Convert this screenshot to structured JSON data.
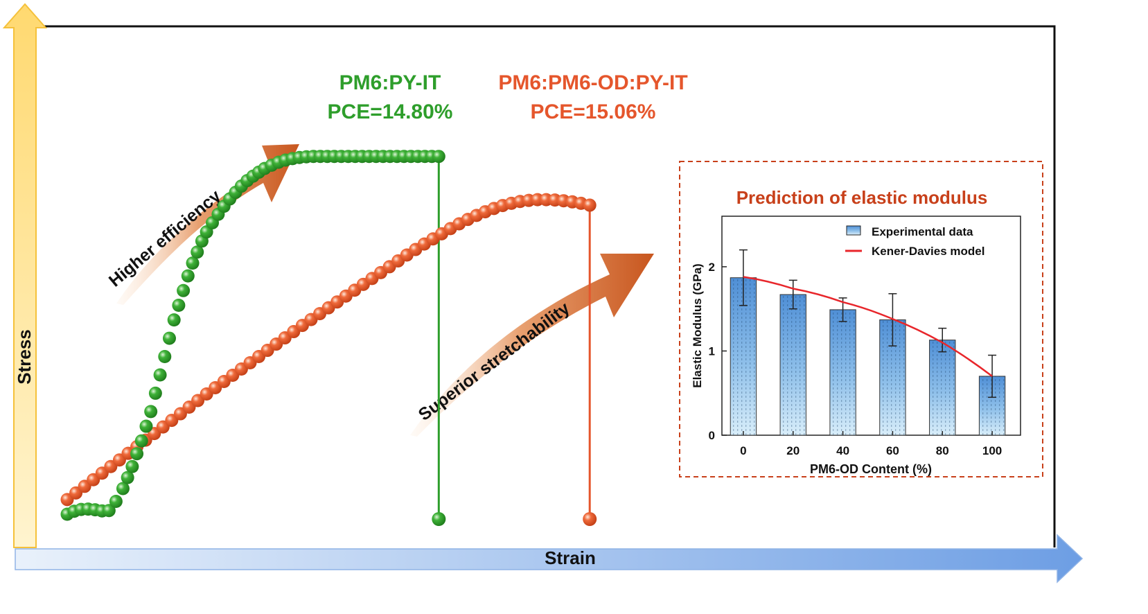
{
  "chart_data": {
    "type": "scatter",
    "xlabel": "Strain",
    "ylabel": "Stress",
    "series": [
      {
        "name": "PM6:PY-IT",
        "annotation": "PCE=14.80%",
        "color": "#2e9e2b",
        "x": [
          0.0,
          0.012,
          0.024,
          0.036,
          0.048,
          0.06,
          0.072,
          0.084,
          0.096,
          0.104,
          0.112,
          0.12,
          0.128,
          0.136,
          0.144,
          0.152,
          0.16,
          0.168,
          0.176,
          0.184,
          0.192,
          0.2,
          0.208,
          0.216,
          0.224,
          0.232,
          0.24,
          0.25,
          0.26,
          0.27,
          0.28,
          0.29,
          0.3,
          0.31,
          0.32,
          0.33,
          0.34,
          0.352,
          0.364,
          0.376,
          0.388,
          0.4,
          0.412,
          0.424,
          0.436,
          0.448,
          0.46,
          0.472,
          0.484,
          0.496,
          0.508,
          0.52,
          0.532,
          0.544,
          0.556,
          0.568,
          0.58,
          0.592,
          0.604,
          0.616,
          0.628,
          0.64
        ],
        "y": [
          0.0,
          0.008,
          0.013,
          0.014,
          0.012,
          0.009,
          0.01,
          0.035,
          0.07,
          0.1,
          0.13,
          0.165,
          0.2,
          0.24,
          0.28,
          0.33,
          0.38,
          0.43,
          0.48,
          0.53,
          0.57,
          0.61,
          0.65,
          0.685,
          0.715,
          0.745,
          0.77,
          0.795,
          0.818,
          0.84,
          0.86,
          0.878,
          0.895,
          0.91,
          0.922,
          0.933,
          0.943,
          0.952,
          0.96,
          0.966,
          0.97,
          0.973,
          0.975,
          0.976,
          0.976,
          0.976,
          0.976,
          0.976,
          0.976,
          0.976,
          0.976,
          0.976,
          0.976,
          0.976,
          0.976,
          0.976,
          0.976,
          0.976,
          0.976,
          0.976,
          0.976,
          0.976
        ],
        "break_strain": 0.64
      },
      {
        "name": "PM6:PM6-OD:PY-IT",
        "annotation": "PCE=15.06%",
        "color": "#e5562c",
        "x": [
          0.0,
          0.015,
          0.03,
          0.045,
          0.06,
          0.075,
          0.09,
          0.105,
          0.12,
          0.135,
          0.15,
          0.165,
          0.18,
          0.195,
          0.21,
          0.225,
          0.24,
          0.255,
          0.27,
          0.285,
          0.3,
          0.315,
          0.33,
          0.345,
          0.36,
          0.375,
          0.39,
          0.405,
          0.42,
          0.435,
          0.45,
          0.465,
          0.48,
          0.495,
          0.51,
          0.525,
          0.54,
          0.555,
          0.57,
          0.585,
          0.6,
          0.615,
          0.63,
          0.645,
          0.66,
          0.675,
          0.69,
          0.705,
          0.72,
          0.735,
          0.75,
          0.765,
          0.78,
          0.795,
          0.81,
          0.825,
          0.84,
          0.855,
          0.87,
          0.885,
          0.9
        ],
        "y": [
          0.04,
          0.058,
          0.076,
          0.094,
          0.112,
          0.13,
          0.148,
          0.166,
          0.184,
          0.202,
          0.22,
          0.238,
          0.256,
          0.274,
          0.292,
          0.31,
          0.328,
          0.345,
          0.362,
          0.379,
          0.396,
          0.413,
          0.43,
          0.447,
          0.464,
          0.481,
          0.498,
          0.515,
          0.531,
          0.547,
          0.563,
          0.579,
          0.595,
          0.611,
          0.627,
          0.643,
          0.659,
          0.675,
          0.691,
          0.707,
          0.722,
          0.737,
          0.751,
          0.765,
          0.779,
          0.792,
          0.804,
          0.815,
          0.825,
          0.834,
          0.842,
          0.848,
          0.853,
          0.856,
          0.858,
          0.858,
          0.857,
          0.855,
          0.852,
          0.848,
          0.843
        ],
        "break_strain": 0.9
      }
    ],
    "annotations": [
      "Higher efficiency",
      "Superior stretchability"
    ]
  },
  "inset": {
    "title": "Prediction of elastic modulus",
    "chart_data": {
      "type": "bar",
      "xlabel": "PM6-OD Content (%)",
      "ylabel": "Elastic Modulus (GPa)",
      "categories": [
        "0",
        "20",
        "40",
        "60",
        "80",
        "100"
      ],
      "values": [
        1.87,
        1.67,
        1.49,
        1.37,
        1.13,
        0.7
      ],
      "errors": [
        0.33,
        0.17,
        0.14,
        0.31,
        0.14,
        0.25
      ],
      "model_line": [
        1.88,
        1.74,
        1.58,
        1.38,
        1.1,
        0.7
      ],
      "ylim": [
        0,
        2.6
      ],
      "yticks": [
        0,
        1,
        2
      ],
      "legend": {
        "bar_label": "Experimental data",
        "line_label": "Kener-Davies model",
        "line_color": "#e8262b"
      }
    }
  }
}
